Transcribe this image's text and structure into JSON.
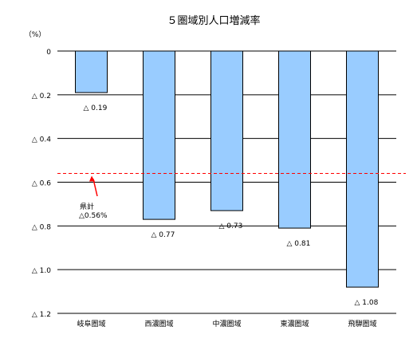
{
  "chart_data": {
    "type": "bar",
    "title": "５圏域別人口増減率",
    "unit_label": "（%）",
    "categories": [
      "岐阜圏域",
      "西濃圏域",
      "中濃圏域",
      "東濃圏域",
      "飛騨圏域"
    ],
    "values": [
      0.19,
      0.77,
      0.73,
      0.81,
      1.08
    ],
    "value_labels": [
      "△ 0.19",
      "△ 0.77",
      "△ 0.73",
      "△ 0.81",
      "△ 1.08"
    ],
    "y_ticks": [
      0,
      0.2,
      0.4,
      0.6,
      0.8,
      1.0,
      1.2
    ],
    "y_tick_labels": [
      "0",
      "△ 0.2",
      "△ 0.4",
      "△ 0.6",
      "△ 0.8",
      "△ 1.0",
      "△ 1.2"
    ],
    "ylim": [
      0,
      1.2
    ],
    "y_inverted": true,
    "grid": true,
    "bar_color": "#99ccff",
    "reference_line": {
      "value": 0.56,
      "label_line1": "県計",
      "label_line2": "△0.56%",
      "color": "#ff0000"
    }
  }
}
